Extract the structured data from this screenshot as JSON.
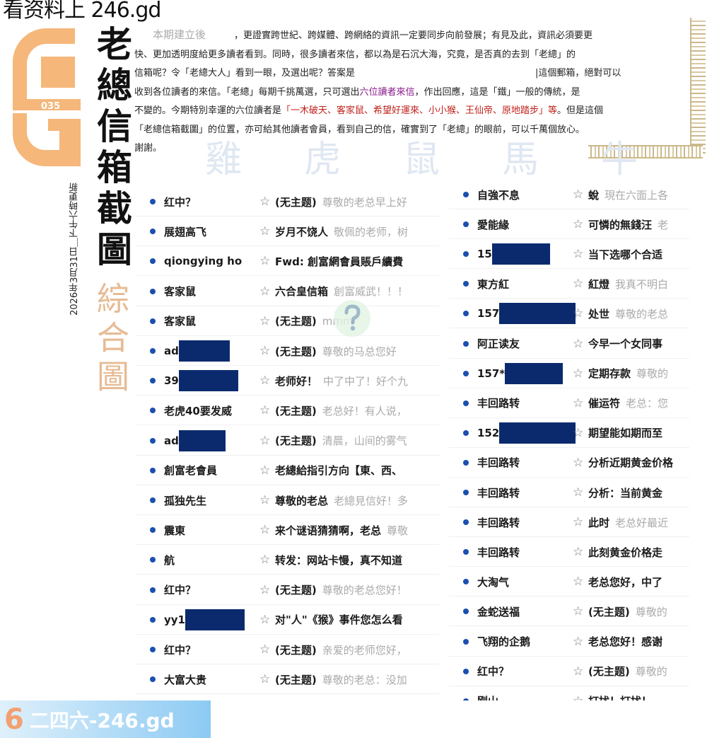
{
  "watermark_top": "看资料上 246.gd",
  "logo": {
    "number": "035",
    "color": "#f5b77a"
  },
  "title": {
    "main": "老總信箱截圖",
    "sub": "綜合圖",
    "date": "2026年3月31日＿下午六時更新"
  },
  "zodiac_bg": "雞虎鼠馬牛",
  "intro": {
    "lead": "本期建立後",
    "l1": "，更證實跨世紀、跨媒體、跨網絡的資訊一定要同步向前發展；有見及此，資訊必須要更",
    "l2": "快、更加透明度給更多讀者看到。同時，很多讀者來信，都以為是石沉大海，究竟，是否真的去到「老總」的",
    "l3a": "信箱呢？令「老總大人」看到一眼，及選出呢？答案是",
    "l3b": "|這個郵箱，絕對可以",
    "l4a": "收到各位讀者的來信。「老總」每期千挑萬選，只可選出",
    "l4b": "六位讀者來信",
    "l4c": "，作出回應，這是「鐵」一般的傳統，是",
    "l5a": "不變的。今期特別幸運的六位讀者是",
    "l5b": "「一木破天、客家鼠、希望好運來、小小猴、王仙帝、原地踏步」等",
    "l5c": "。但是這個",
    "l6": "「老總信箱截圖」的位置，亦可給其他讀者會員，看到自己的信，確實到了「老總」的眼前，可以千萬個放心。",
    "l7": "謝謝。",
    "colors": {
      "highlight_purple": "#8a1a8a",
      "highlight_red": "#c0201a"
    }
  },
  "left_list": [
    {
      "sender": "红中？",
      "subject": "(无主题)",
      "preview": "尊敬的老总早上好"
    },
    {
      "sender": "展翅高飞",
      "subject": "岁月不饶人",
      "preview": "敬佩的老师，树"
    },
    {
      "sender": "qiongying ho",
      "subject": "Fwd: 創富網會員賬戶續費",
      "preview": ""
    },
    {
      "sender": "客家鼠",
      "subject": "六合皇信箱",
      "preview": "創富威武！！！"
    },
    {
      "sender": "客家鼠",
      "subject": "(无主题)",
      "preview": "mmm"
    },
    {
      "sender": "ad",
      "redacted": true,
      "subject": "(无主题)",
      "preview": "尊敬的马总您好"
    },
    {
      "sender": "39",
      "redacted": true,
      "subject": "老师好！",
      "preview": "中了中了！好个九"
    },
    {
      "sender": "老虎40要发威",
      "subject": "(无主题)",
      "preview": "老总好！有人说，"
    },
    {
      "sender": "ad",
      "redacted": true,
      "subject": "(无主题)",
      "preview": "清晨，山间的雾气"
    },
    {
      "sender": "創富老會員",
      "subject": "老總給指引方向【東、西、",
      "preview": ""
    },
    {
      "sender": "孤独先生",
      "subject": "尊敬的老总",
      "preview": "老總見信好！多"
    },
    {
      "sender": "震東",
      "subject": "来个谜语猜猜啊，老总",
      "preview": "尊敬"
    },
    {
      "sender": "航",
      "subject": "转发：网站卡慢，真不知道",
      "preview": ""
    },
    {
      "sender": "红中？",
      "subject": "(无主题)",
      "preview": "尊敬的老总您好！"
    },
    {
      "sender": "yy1",
      "redacted": true,
      "subject": "对\"人\"《猴》事件您怎么看",
      "preview": ""
    },
    {
      "sender": "红中？",
      "subject": "(无主题)",
      "preview": "亲爱的老师您好，"
    },
    {
      "sender": "大富大贵",
      "subject": "(无主题)",
      "preview": "尊敬的老总：没加"
    }
  ],
  "right_list": [
    {
      "sender": "自強不息",
      "subject": "蛻",
      "preview": "現在六面上各"
    },
    {
      "sender": "愛能緣",
      "subject": "可憐的無錢汪",
      "preview": "老"
    },
    {
      "sender": "15",
      "redacted": true,
      "subject": "当下选哪个合适",
      "preview": ""
    },
    {
      "sender": "東方紅",
      "subject": "紅燈",
      "preview": "我真不明白"
    },
    {
      "sender": "157",
      "redacted": true,
      "subject": "处世",
      "preview": "尊敬的老总"
    },
    {
      "sender": "阿正读友",
      "subject": "今早一个女同事",
      "preview": ""
    },
    {
      "sender": "157*",
      "redacted": true,
      "subject": "定期存款",
      "preview": "尊敬的"
    },
    {
      "sender": "丰回路转",
      "subject": "催运符",
      "preview": "老总：您"
    },
    {
      "sender": "152",
      "redacted": true,
      "subject": "期望能如期而至",
      "preview": ""
    },
    {
      "sender": "丰回路转",
      "subject": "分析近期黄金价格",
      "preview": ""
    },
    {
      "sender": "丰回路转",
      "subject": "分析：当前黄金",
      "preview": ""
    },
    {
      "sender": "丰回路转",
      "subject": "此时",
      "preview": "老总好最近"
    },
    {
      "sender": "丰回路转",
      "subject": "此刻黄金价格走",
      "preview": ""
    },
    {
      "sender": "大淘气",
      "subject": "老总您好，中了",
      "preview": ""
    },
    {
      "sender": "金蛇送福",
      "subject": "(无主题)",
      "preview": "尊敬的"
    },
    {
      "sender": "飞翔的企鹅",
      "subject": "老总您好！感谢",
      "preview": ""
    },
    {
      "sender": "红中？",
      "subject": "(无主题)",
      "preview": "尊敬的"
    },
    {
      "sender": "刚山",
      "subject": "打扰！打扰！",
      "preview": ""
    }
  ],
  "watermark_bottom": {
    "digit": "6",
    "text": "二四六-246.gd"
  },
  "colors": {
    "redaction": "#0b2a6e",
    "bullet": "#1b4fb0",
    "subtitle": "#e7bb94"
  }
}
